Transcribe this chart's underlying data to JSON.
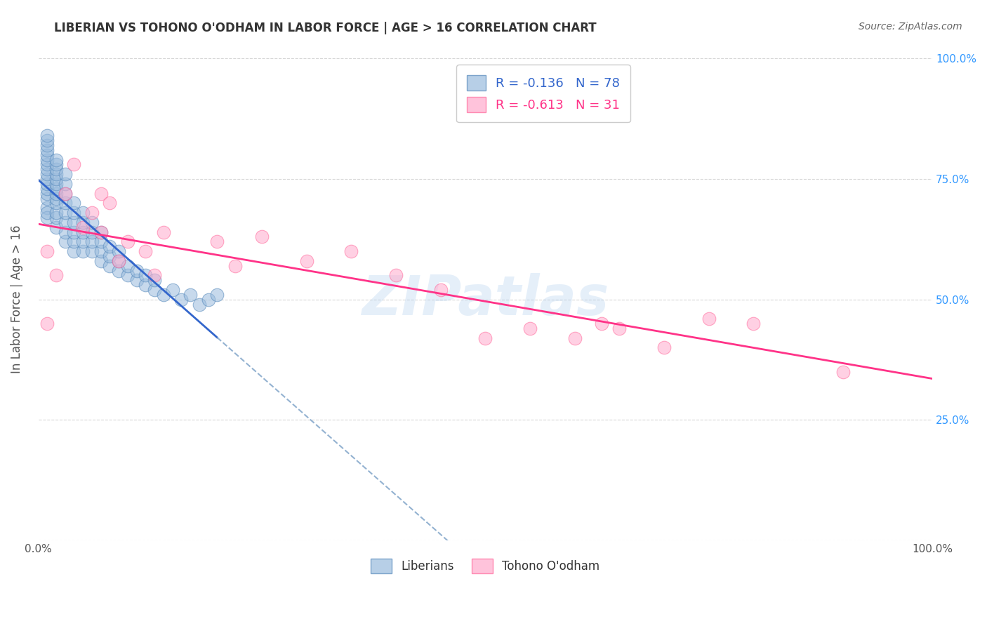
{
  "title": "LIBERIAN VS TOHONO O'ODHAM IN LABOR FORCE | AGE > 16 CORRELATION CHART",
  "source_text": "Source: ZipAtlas.com",
  "ylabel": "In Labor Force | Age > 16",
  "legend_labels": [
    "Liberians",
    "Tohono O'odham"
  ],
  "r_liberian": -0.136,
  "n_liberian": 78,
  "r_tohono": -0.613,
  "n_tohono": 31,
  "blue_color": "#99BBDD",
  "pink_color": "#FFAACC",
  "blue_edge": "#5588BB",
  "pink_edge": "#FF6699",
  "trend_blue": "#3366CC",
  "trend_pink": "#FF3388",
  "trend_dash_color": "#88AACC",
  "liberian_x": [
    0.01,
    0.01,
    0.01,
    0.01,
    0.01,
    0.01,
    0.01,
    0.01,
    0.01,
    0.01,
    0.01,
    0.01,
    0.01,
    0.01,
    0.01,
    0.01,
    0.01,
    0.02,
    0.02,
    0.02,
    0.02,
    0.02,
    0.02,
    0.02,
    0.02,
    0.02,
    0.02,
    0.02,
    0.02,
    0.02,
    0.03,
    0.03,
    0.03,
    0.03,
    0.03,
    0.03,
    0.03,
    0.03,
    0.04,
    0.04,
    0.04,
    0.04,
    0.04,
    0.04,
    0.05,
    0.05,
    0.05,
    0.05,
    0.05,
    0.06,
    0.06,
    0.06,
    0.06,
    0.07,
    0.07,
    0.07,
    0.07,
    0.08,
    0.08,
    0.08,
    0.09,
    0.09,
    0.09,
    0.1,
    0.1,
    0.11,
    0.11,
    0.12,
    0.12,
    0.13,
    0.13,
    0.14,
    0.15,
    0.16,
    0.17,
    0.18,
    0.19,
    0.2
  ],
  "liberian_y": [
    0.69,
    0.71,
    0.72,
    0.73,
    0.74,
    0.75,
    0.76,
    0.77,
    0.78,
    0.79,
    0.8,
    0.81,
    0.82,
    0.83,
    0.84,
    0.67,
    0.68,
    0.65,
    0.67,
    0.68,
    0.7,
    0.71,
    0.72,
    0.73,
    0.74,
    0.75,
    0.76,
    0.77,
    0.78,
    0.79,
    0.62,
    0.64,
    0.66,
    0.68,
    0.7,
    0.72,
    0.74,
    0.76,
    0.6,
    0.62,
    0.64,
    0.66,
    0.68,
    0.7,
    0.6,
    0.62,
    0.64,
    0.66,
    0.68,
    0.6,
    0.62,
    0.64,
    0.66,
    0.58,
    0.6,
    0.62,
    0.64,
    0.57,
    0.59,
    0.61,
    0.56,
    0.58,
    0.6,
    0.55,
    0.57,
    0.54,
    0.56,
    0.53,
    0.55,
    0.52,
    0.54,
    0.51,
    0.52,
    0.5,
    0.51,
    0.49,
    0.5,
    0.51
  ],
  "tohono_x": [
    0.01,
    0.01,
    0.02,
    0.03,
    0.04,
    0.05,
    0.06,
    0.07,
    0.07,
    0.08,
    0.09,
    0.1,
    0.12,
    0.13,
    0.14,
    0.2,
    0.22,
    0.25,
    0.3,
    0.35,
    0.4,
    0.45,
    0.5,
    0.55,
    0.6,
    0.63,
    0.65,
    0.7,
    0.75,
    0.8,
    0.9
  ],
  "tohono_y": [
    0.45,
    0.6,
    0.55,
    0.72,
    0.78,
    0.65,
    0.68,
    0.72,
    0.64,
    0.7,
    0.58,
    0.62,
    0.6,
    0.55,
    0.64,
    0.62,
    0.57,
    0.63,
    0.58,
    0.6,
    0.55,
    0.52,
    0.42,
    0.44,
    0.42,
    0.45,
    0.44,
    0.4,
    0.46,
    0.45,
    0.35
  ],
  "xlim": [
    0.0,
    1.0
  ],
  "ylim": [
    0.0,
    1.0
  ],
  "x_ticks": [
    0.0,
    1.0
  ],
  "x_tick_labels": [
    "0.0%",
    "100.0%"
  ],
  "y_ticks": [
    0.0,
    0.25,
    0.5,
    0.75,
    1.0
  ],
  "right_y_ticks": [
    0.25,
    0.5,
    0.75,
    1.0
  ],
  "right_y_tick_labels": [
    "25.0%",
    "50.0%",
    "75.0%",
    "100.0%"
  ],
  "watermark": "ZIPatlas",
  "background_color": "#FFFFFF",
  "grid_color": "#CCCCCC"
}
